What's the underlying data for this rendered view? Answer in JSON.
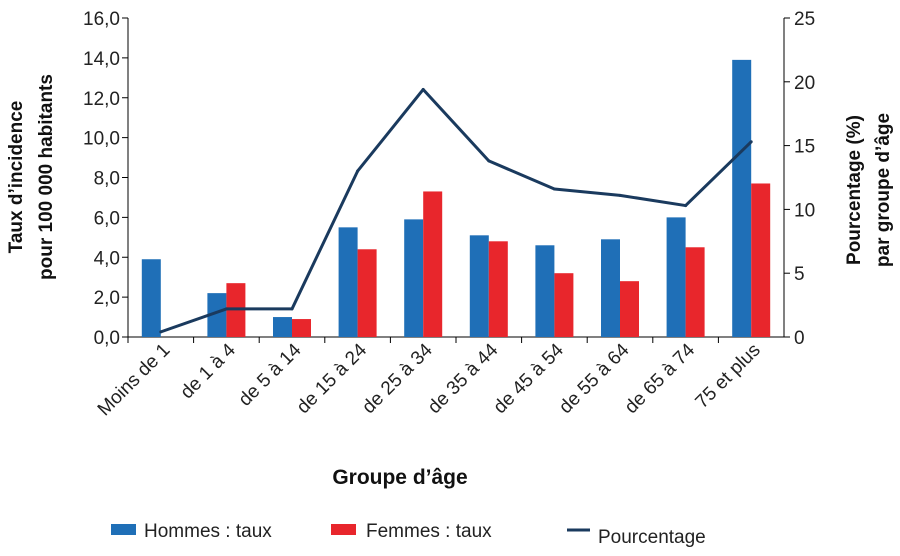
{
  "chart_data": {
    "type": "bar",
    "categories": [
      "Moins de 1",
      "de 1 à 4",
      "de 5 à 14",
      "de 15 à 24",
      "de 25 à 34",
      "de 35 à 44",
      "de 45 à 54",
      "de 55 à 64",
      "de 65 à 74",
      "75 et plus"
    ],
    "series": [
      {
        "name": "Hommes : taux",
        "kind": "bar",
        "axis": "left",
        "color": "#1F6FB7",
        "values": [
          3.9,
          2.2,
          1.0,
          5.5,
          5.9,
          5.1,
          4.6,
          4.9,
          6.0,
          13.9
        ]
      },
      {
        "name": "Femmes : taux",
        "kind": "bar",
        "axis": "left",
        "color": "#E8262C",
        "values": [
          null,
          2.7,
          0.9,
          4.4,
          7.3,
          4.8,
          3.2,
          2.8,
          4.5,
          7.7
        ]
      },
      {
        "name": "Pourcentage",
        "kind": "line",
        "axis": "right",
        "color": "#1A3A5E",
        "values": [
          0.4,
          2.2,
          2.2,
          13.0,
          19.4,
          13.8,
          11.6,
          11.1,
          10.3,
          15.3
        ]
      }
    ],
    "ylabel": "Taux d’incidence pour 100 000 habitants",
    "ylabel_lines": [
      "Taux d’incidence",
      "pour 100 000 habitants"
    ],
    "y2label": "Pourcentage (%) par groupe d’âge",
    "y2label_lines": [
      "Pourcentage (%)",
      "par groupe d’âge"
    ],
    "xlabel": "Groupe d’âge",
    "ylim": [
      0,
      16
    ],
    "y2lim": [
      0,
      25
    ],
    "yticks": [
      "0,0",
      "2,0",
      "4,0",
      "6,0",
      "8,0",
      "10,0",
      "12,0",
      "14,0",
      "16,0"
    ],
    "y2ticks": [
      "0",
      "5",
      "10",
      "15",
      "20",
      "25"
    ],
    "grid": false,
    "legend_position": "bottom"
  }
}
